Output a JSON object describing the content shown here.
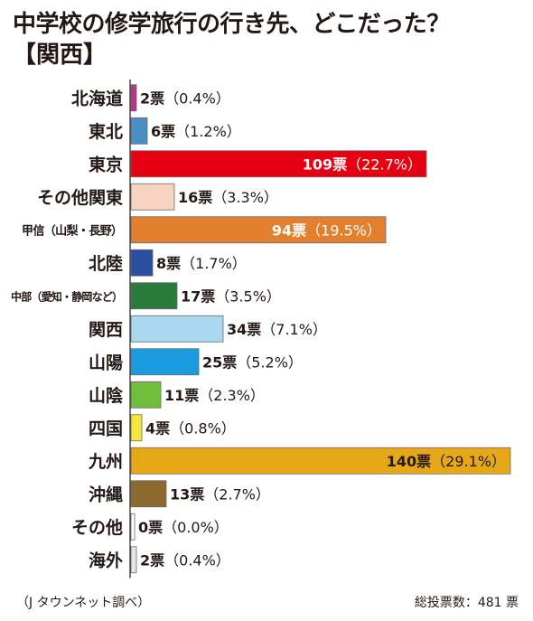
{
  "title": "中学校の修学旅行の行き先、どこだった？",
  "subtitle": "【関西】",
  "source": "（J タウンネット調べ）",
  "total": "総投票数：481 票",
  "chart_data": {
    "type": "bar",
    "orientation": "horizontal",
    "title": "中学校の修学旅行の行き先、どこだった？",
    "subtitle": "【関西】",
    "categories": [
      "北海道",
      "東北",
      "東京",
      "その他関東",
      "甲信（山梨・長野）",
      "北陸",
      "中部（愛知・静岡など）",
      "関西",
      "山陽",
      "山陰",
      "四国",
      "九州",
      "沖縄",
      "その他",
      "海外"
    ],
    "values": [
      2,
      6,
      109,
      16,
      94,
      8,
      17,
      34,
      25,
      11,
      4,
      140,
      13,
      0,
      2
    ],
    "value_labels": [
      "2票",
      "6票",
      "109票",
      "16票",
      "94票",
      "8票",
      "17票",
      "34票",
      "25票",
      "11票",
      "4票",
      "140票",
      "13票",
      "0票",
      "2票"
    ],
    "percent_labels": [
      "（0.4%）",
      "（1.2%）",
      "（22.7%）",
      "（3.3%）",
      "（19.5%）",
      "（1.7%）",
      "（3.5%）",
      "（7.1%）",
      "（5.2%）",
      "（2.3%）",
      "（0.8%）",
      "（29.1%）",
      "（2.7%）",
      "（0.0%）",
      "（0.4%）"
    ],
    "colors": [
      "#b5338a",
      "#4a8fc4",
      "#e60012",
      "#f8d3c0",
      "#e3802f",
      "#2a4fa0",
      "#2a7a3c",
      "#a9d8f0",
      "#1a9be0",
      "#6fbf3c",
      "#f5e63a",
      "#e6a817",
      "#8c6a2e",
      "#ffffff",
      "#e6e6e6"
    ],
    "label_inside": [
      false,
      false,
      true,
      false,
      true,
      false,
      false,
      false,
      false,
      false,
      false,
      true,
      false,
      false,
      false
    ],
    "grid": false,
    "legend": "none"
  }
}
